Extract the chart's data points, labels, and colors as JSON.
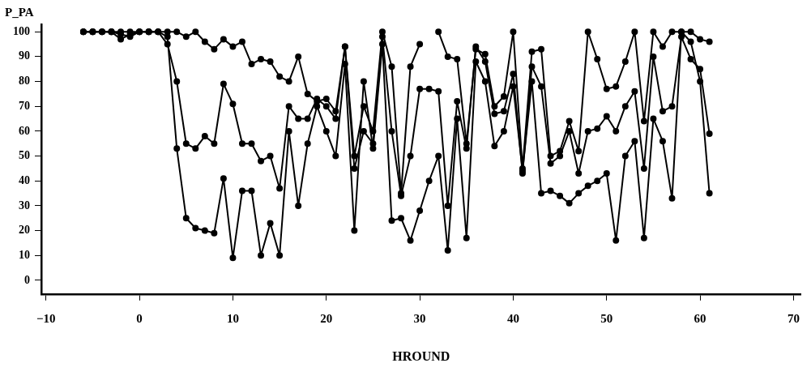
{
  "chart_data": {
    "type": "line",
    "xlabel": "HROUND",
    "ylabel": "P_PA",
    "x": [
      -6,
      -5,
      -4,
      -3,
      -2,
      -1,
      0,
      1,
      2,
      3,
      4,
      5,
      6,
      7,
      8,
      9,
      10,
      11,
      12,
      13,
      14,
      15,
      16,
      17,
      18,
      19,
      20,
      21,
      22,
      23,
      24,
      25,
      26,
      27,
      28,
      29,
      30,
      31,
      32,
      33,
      34,
      35,
      36,
      37,
      38,
      39,
      40,
      41,
      42,
      43,
      44,
      45,
      46,
      47,
      48,
      49,
      50,
      51,
      52,
      53,
      54,
      55,
      56,
      57,
      58,
      59,
      60,
      61
    ],
    "series": [
      {
        "color": "#000000",
        "values": [
          100,
          100,
          100,
          100,
          99,
          98,
          100,
          100,
          100,
          100,
          100,
          98,
          100,
          96,
          93,
          97,
          94,
          96,
          87,
          89,
          88,
          82,
          80,
          90,
          75,
          72,
          73,
          68,
          94,
          50,
          70,
          60,
          100,
          86,
          35,
          86,
          95,
          null,
          100,
          90,
          89,
          55,
          93,
          91,
          70,
          74,
          100,
          45,
          92,
          93,
          50,
          52,
          64,
          52,
          100,
          89,
          77,
          78,
          88,
          100,
          64,
          100,
          94,
          100,
          100,
          100,
          97,
          96
        ]
      },
      {
        "color": "#000000",
        "values": [
          100,
          100,
          100,
          100,
          97,
          99,
          100,
          100,
          100,
          95,
          80,
          55,
          53,
          58,
          55,
          79,
          71,
          55,
          55,
          48,
          50,
          37,
          70,
          65,
          65,
          73,
          70,
          65,
          94,
          45,
          60,
          55,
          98,
          60,
          34,
          50,
          77,
          77,
          76,
          30,
          72,
          53,
          94,
          88,
          67,
          68,
          83,
          43,
          86,
          78,
          47,
          50,
          60,
          43,
          60,
          61,
          66,
          60,
          70,
          76,
          45,
          90,
          68,
          70,
          98,
          89,
          85,
          59
        ]
      },
      {
        "color": "#000000",
        "values": [
          100,
          100,
          100,
          100,
          100,
          100,
          100,
          100,
          100,
          98,
          53,
          25,
          21,
          20,
          19,
          41,
          9,
          36,
          36,
          10,
          23,
          10,
          60,
          30,
          55,
          70,
          60,
          50,
          87,
          20,
          80,
          53,
          95,
          24,
          25,
          16,
          28,
          40,
          50,
          12,
          65,
          17,
          88,
          80,
          54,
          60,
          78,
          44,
          80,
          35,
          36,
          34,
          31,
          35,
          38,
          40,
          43,
          16,
          50,
          56,
          17,
          65,
          56,
          33,
          100,
          96,
          80,
          35
        ]
      }
    ],
    "xlim": [
      -10.5,
      70.8
    ],
    "xticks": [
      -10,
      0,
      10,
      20,
      30,
      40,
      50,
      60,
      70
    ],
    "ylim": [
      -5.5,
      103
    ],
    "yticks": [
      0,
      10,
      20,
      30,
      40,
      50,
      60,
      70,
      80,
      90,
      100
    ],
    "grid": false,
    "legend": false,
    "marker": "circle",
    "line_style": "solid"
  }
}
